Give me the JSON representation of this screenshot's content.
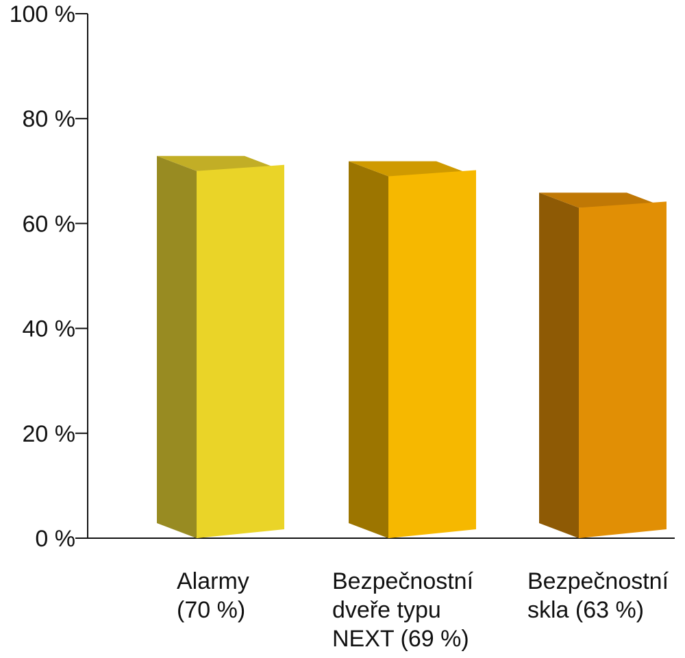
{
  "chart_data": {
    "type": "bar",
    "style": "3d",
    "categories": [
      [
        "Alarmy",
        "(70 %)"
      ],
      [
        "Bezpečnostní",
        "dveře typu",
        "NEXT (69 %)"
      ],
      [
        "Bezpečnostní",
        "skla (63 %)"
      ]
    ],
    "values": [
      70,
      69,
      63
    ],
    "yticks": [
      "0 %",
      "20 %",
      "40 %",
      "60 %",
      "80 %",
      "100 %"
    ],
    "ylim": [
      0,
      100
    ],
    "grid": false,
    "bar_colors": [
      {
        "front": "#ead428",
        "side": "#988b22",
        "top": "#c2ae26"
      },
      {
        "front": "#f6b800",
        "side": "#9c7500",
        "top": "#cf9a00"
      },
      {
        "front": "#e18f05",
        "side": "#8e5a05",
        "top": "#c07805"
      }
    ]
  }
}
